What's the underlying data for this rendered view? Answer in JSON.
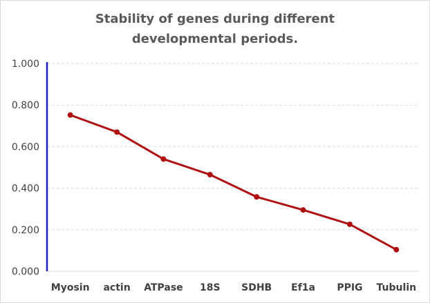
{
  "chart_data": {
    "type": "line",
    "title_lines": [
      "Stability of genes during different",
      "developmental periods."
    ],
    "xlabel": "",
    "ylabel": "",
    "categories": [
      "Myosin",
      "actin",
      "ATPase",
      "18S",
      "SDHB",
      "Ef1a",
      "PPIG",
      "Tubulin"
    ],
    "values": [
      0.752,
      0.67,
      0.54,
      0.465,
      0.358,
      0.295,
      0.226,
      0.104
    ],
    "ylim": [
      0,
      1.0
    ],
    "yticks": [
      "0.000",
      "0.200",
      "0.400",
      "0.600",
      "0.800",
      "1.000"
    ],
    "grid": true,
    "legend": "none",
    "colors": {
      "line": "#b01010",
      "axis": "#1f1fbf",
      "grid": "#d9d9d9"
    }
  }
}
